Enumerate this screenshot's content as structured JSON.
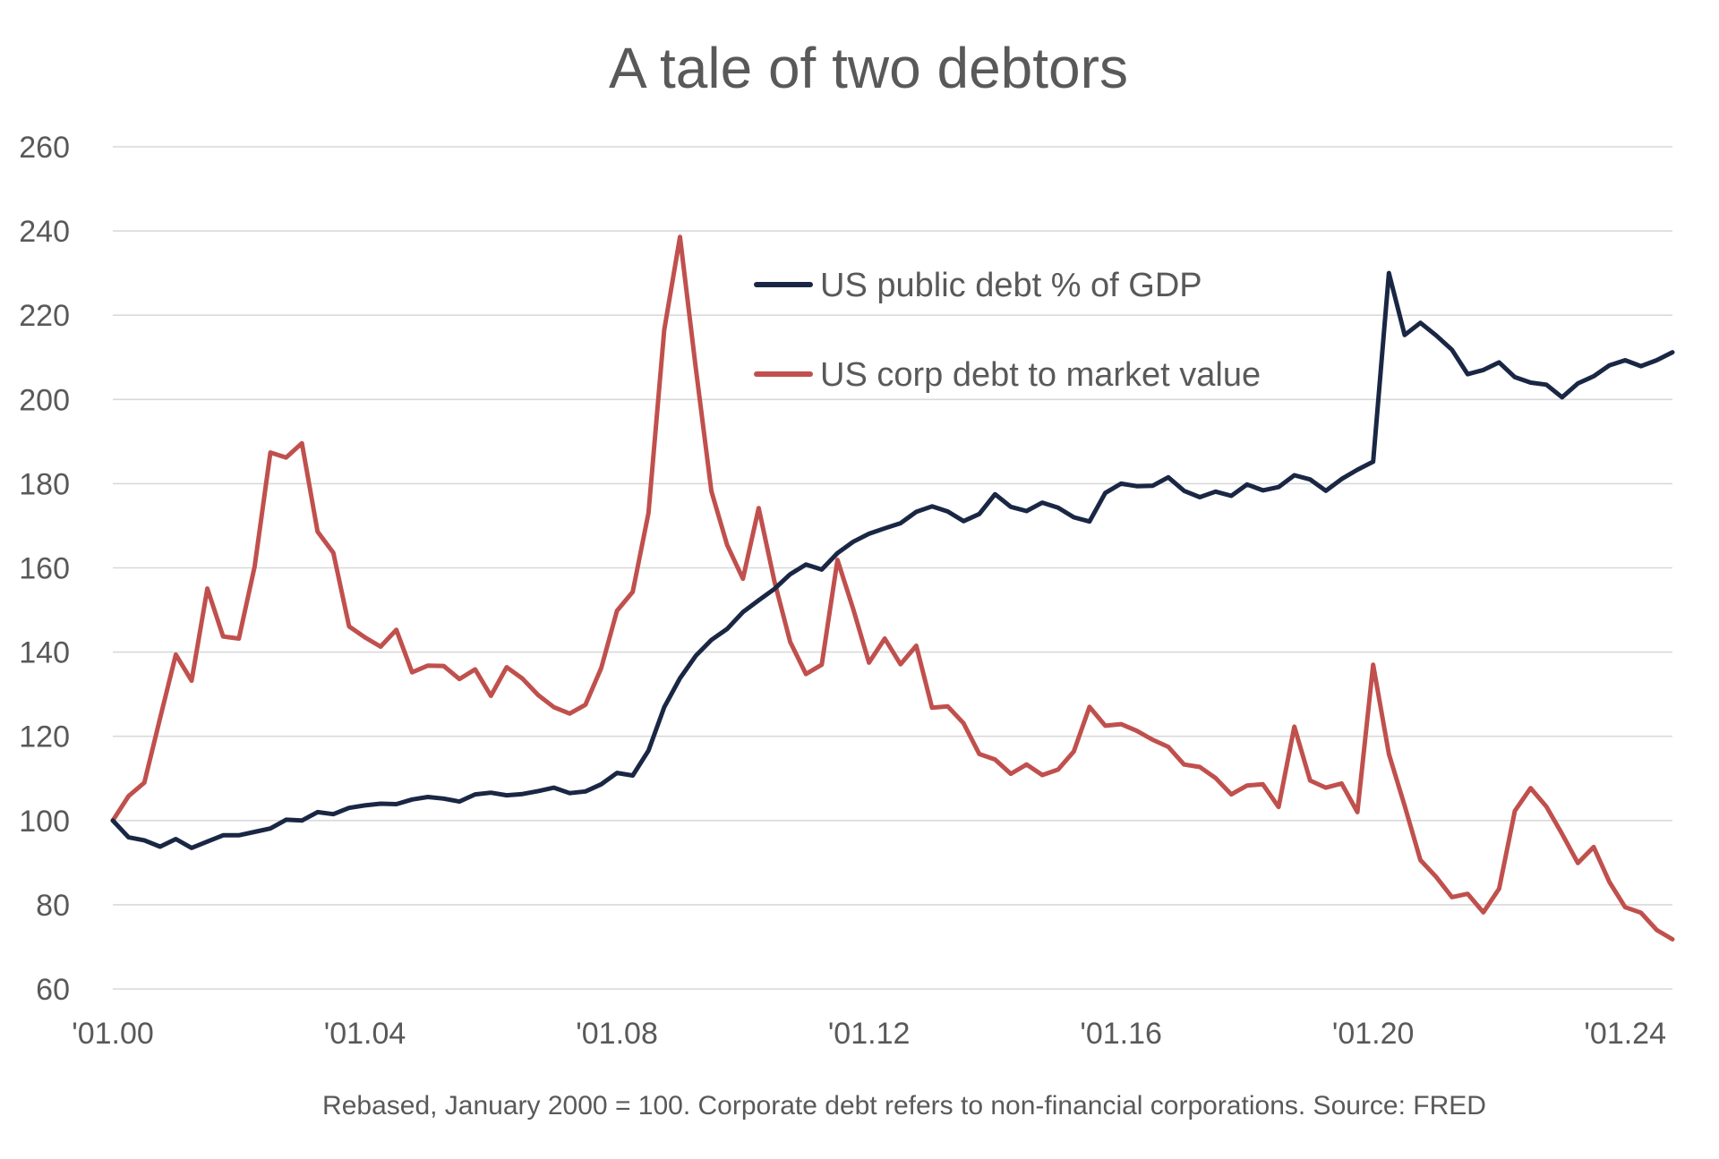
{
  "chart_data": {
    "type": "line",
    "title": "A tale of two debtors",
    "subtitle": "",
    "xlabel": "",
    "ylabel": "",
    "caption": "Rebased, January 2000 = 100. Corporate debt refers to non-financial corporations. Source: FRED",
    "ylim": [
      60,
      260
    ],
    "y_ticks": [
      60,
      80,
      100,
      120,
      140,
      160,
      180,
      200,
      220,
      240,
      260
    ],
    "y_tick_labels": [
      "60",
      "80",
      "100",
      "120",
      "140",
      "160",
      "180",
      "200",
      "220",
      "240",
      "260"
    ],
    "x_range": [
      2000.0,
      2024.75
    ],
    "x_ticks": [
      2000,
      2004,
      2008,
      2012,
      2016,
      2020,
      2024
    ],
    "x_tick_labels": [
      "'01.00",
      "'01.04",
      "'01.08",
      "'01.12",
      "'01.16",
      "'01.20",
      "'01.24"
    ],
    "grid": true,
    "legend_position": "top-center",
    "series": [
      {
        "name": "US public debt % of GDP",
        "color": "#1a2744",
        "x": [
          2000.0,
          2000.25,
          2000.5,
          2000.75,
          2001.0,
          2001.25,
          2001.5,
          2001.75,
          2002.0,
          2002.25,
          2002.5,
          2002.75,
          2003.0,
          2003.25,
          2003.5,
          2003.75,
          2004.0,
          2004.25,
          2004.5,
          2004.75,
          2005.0,
          2005.25,
          2005.5,
          2005.75,
          2006.0,
          2006.25,
          2006.5,
          2006.75,
          2007.0,
          2007.25,
          2007.5,
          2007.75,
          2008.0,
          2008.25,
          2008.5,
          2008.75,
          2009.0,
          2009.25,
          2009.5,
          2009.75,
          2010.0,
          2010.25,
          2010.5,
          2010.75,
          2011.0,
          2011.25,
          2011.5,
          2011.75,
          2012.0,
          2012.25,
          2012.5,
          2012.75,
          2013.0,
          2013.25,
          2013.5,
          2013.75,
          2014.0,
          2014.25,
          2014.5,
          2014.75,
          2015.0,
          2015.25,
          2015.5,
          2015.75,
          2016.0,
          2016.25,
          2016.5,
          2016.75,
          2017.0,
          2017.25,
          2017.5,
          2017.75,
          2018.0,
          2018.25,
          2018.5,
          2018.75,
          2019.0,
          2019.25,
          2019.5,
          2019.75,
          2020.0,
          2020.25,
          2020.5,
          2020.75,
          2021.0,
          2021.25,
          2021.5,
          2021.75,
          2022.0,
          2022.25,
          2022.5,
          2022.75,
          2023.0,
          2023.25,
          2023.5,
          2023.75,
          2024.0,
          2024.25,
          2024.5,
          2024.75
        ],
        "values": [
          100,
          96,
          95.3,
          93.8,
          95.6,
          93.5,
          95,
          96.5,
          96.5,
          97.3,
          98.1,
          100.2,
          100,
          102,
          101.5,
          103,
          103.6,
          104,
          103.9,
          105,
          105.6,
          105.2,
          104.5,
          106.2,
          106.6,
          106,
          106.3,
          107,
          107.8,
          106.5,
          106.9,
          108.6,
          111.3,
          110.7,
          116.6,
          126.9,
          133.8,
          139.1,
          142.9,
          145.5,
          149.5,
          152.3,
          155,
          158.5,
          160.8,
          159.6,
          163.5,
          166.2,
          168.1,
          169.4,
          170.6,
          173.3,
          174.6,
          173.4,
          171.1,
          172.8,
          177.5,
          174.5,
          173.5,
          175.5,
          174.3,
          172,
          171,
          177.8,
          180,
          179.4,
          179.5,
          181.5,
          178.3,
          176.8,
          178.1,
          177.1,
          179.8,
          178.4,
          179.2,
          182,
          181,
          178.3,
          181.1,
          183.3,
          185.2,
          230,
          215.3,
          218.2,
          215.2,
          211.8,
          206,
          207,
          208.8,
          205.3,
          204,
          203.5,
          200.5,
          203.8,
          205.5,
          208.1,
          209.3,
          207.9,
          209.3,
          211.2
        ]
      },
      {
        "name": "US corp debt to market value",
        "color": "#c0504d",
        "x": [
          2000.0,
          2000.25,
          2000.5,
          2000.75,
          2001.0,
          2001.25,
          2001.5,
          2001.75,
          2002.0,
          2002.25,
          2002.5,
          2002.75,
          2003.0,
          2003.25,
          2003.5,
          2003.75,
          2004.0,
          2004.25,
          2004.5,
          2004.75,
          2005.0,
          2005.25,
          2005.5,
          2005.75,
          2006.0,
          2006.25,
          2006.5,
          2006.75,
          2007.0,
          2007.25,
          2007.5,
          2007.75,
          2008.0,
          2008.25,
          2008.5,
          2008.75,
          2009.0,
          2009.25,
          2009.5,
          2009.75,
          2010.0,
          2010.25,
          2010.5,
          2010.75,
          2011.0,
          2011.25,
          2011.5,
          2011.75,
          2012.0,
          2012.25,
          2012.5,
          2012.75,
          2013.0,
          2013.25,
          2013.5,
          2013.75,
          2014.0,
          2014.25,
          2014.5,
          2014.75,
          2015.0,
          2015.25,
          2015.5,
          2015.75,
          2016.0,
          2016.25,
          2016.5,
          2016.75,
          2017.0,
          2017.25,
          2017.5,
          2017.75,
          2018.0,
          2018.25,
          2018.5,
          2018.75,
          2019.0,
          2019.25,
          2019.5,
          2019.75,
          2020.0,
          2020.25,
          2020.5,
          2020.75,
          2021.0,
          2021.25,
          2021.5,
          2021.75,
          2022.0,
          2022.25,
          2022.5,
          2022.75,
          2023.0,
          2023.25,
          2023.5,
          2023.75,
          2024.0,
          2024.25,
          2024.5,
          2024.75
        ],
        "values": [
          100,
          105.8,
          109,
          124.3,
          139.4,
          133.2,
          155.1,
          143.7,
          143.2,
          160.3,
          187.4,
          186.2,
          189.6,
          168.6,
          163.6,
          146.1,
          143.5,
          141.3,
          145.3,
          135.2,
          136.8,
          136.7,
          133.6,
          135.9,
          129.6,
          136.4,
          133.7,
          129.8,
          126.9,
          125.4,
          127.5,
          136.2,
          149.8,
          154.3,
          173,
          216.5,
          238.6,
          207.5,
          178.2,
          165.4,
          157.4,
          174.2,
          156.8,
          142.4,
          134.8,
          137,
          161.9,
          150.2,
          137.5,
          143.2,
          137.1,
          141.5,
          126.8,
          127.1,
          123.1,
          115.8,
          114.5,
          111.1,
          113.3,
          110.8,
          112.1,
          116.4,
          127,
          122.5,
          122.9,
          121.3,
          119.2,
          117.5,
          113.3,
          112.7,
          110.1,
          106.2,
          108.3,
          108.6,
          103.2,
          122.3,
          109.5,
          107.8,
          108.8,
          102,
          137,
          115.8,
          103.5,
          90.6,
          86.6,
          81.8,
          82.6,
          78.2,
          83.8,
          102.3,
          107.7,
          103.3,
          96.8,
          89.9,
          93.7,
          85.4,
          79.4,
          78.1,
          74,
          71.8
        ]
      }
    ]
  }
}
